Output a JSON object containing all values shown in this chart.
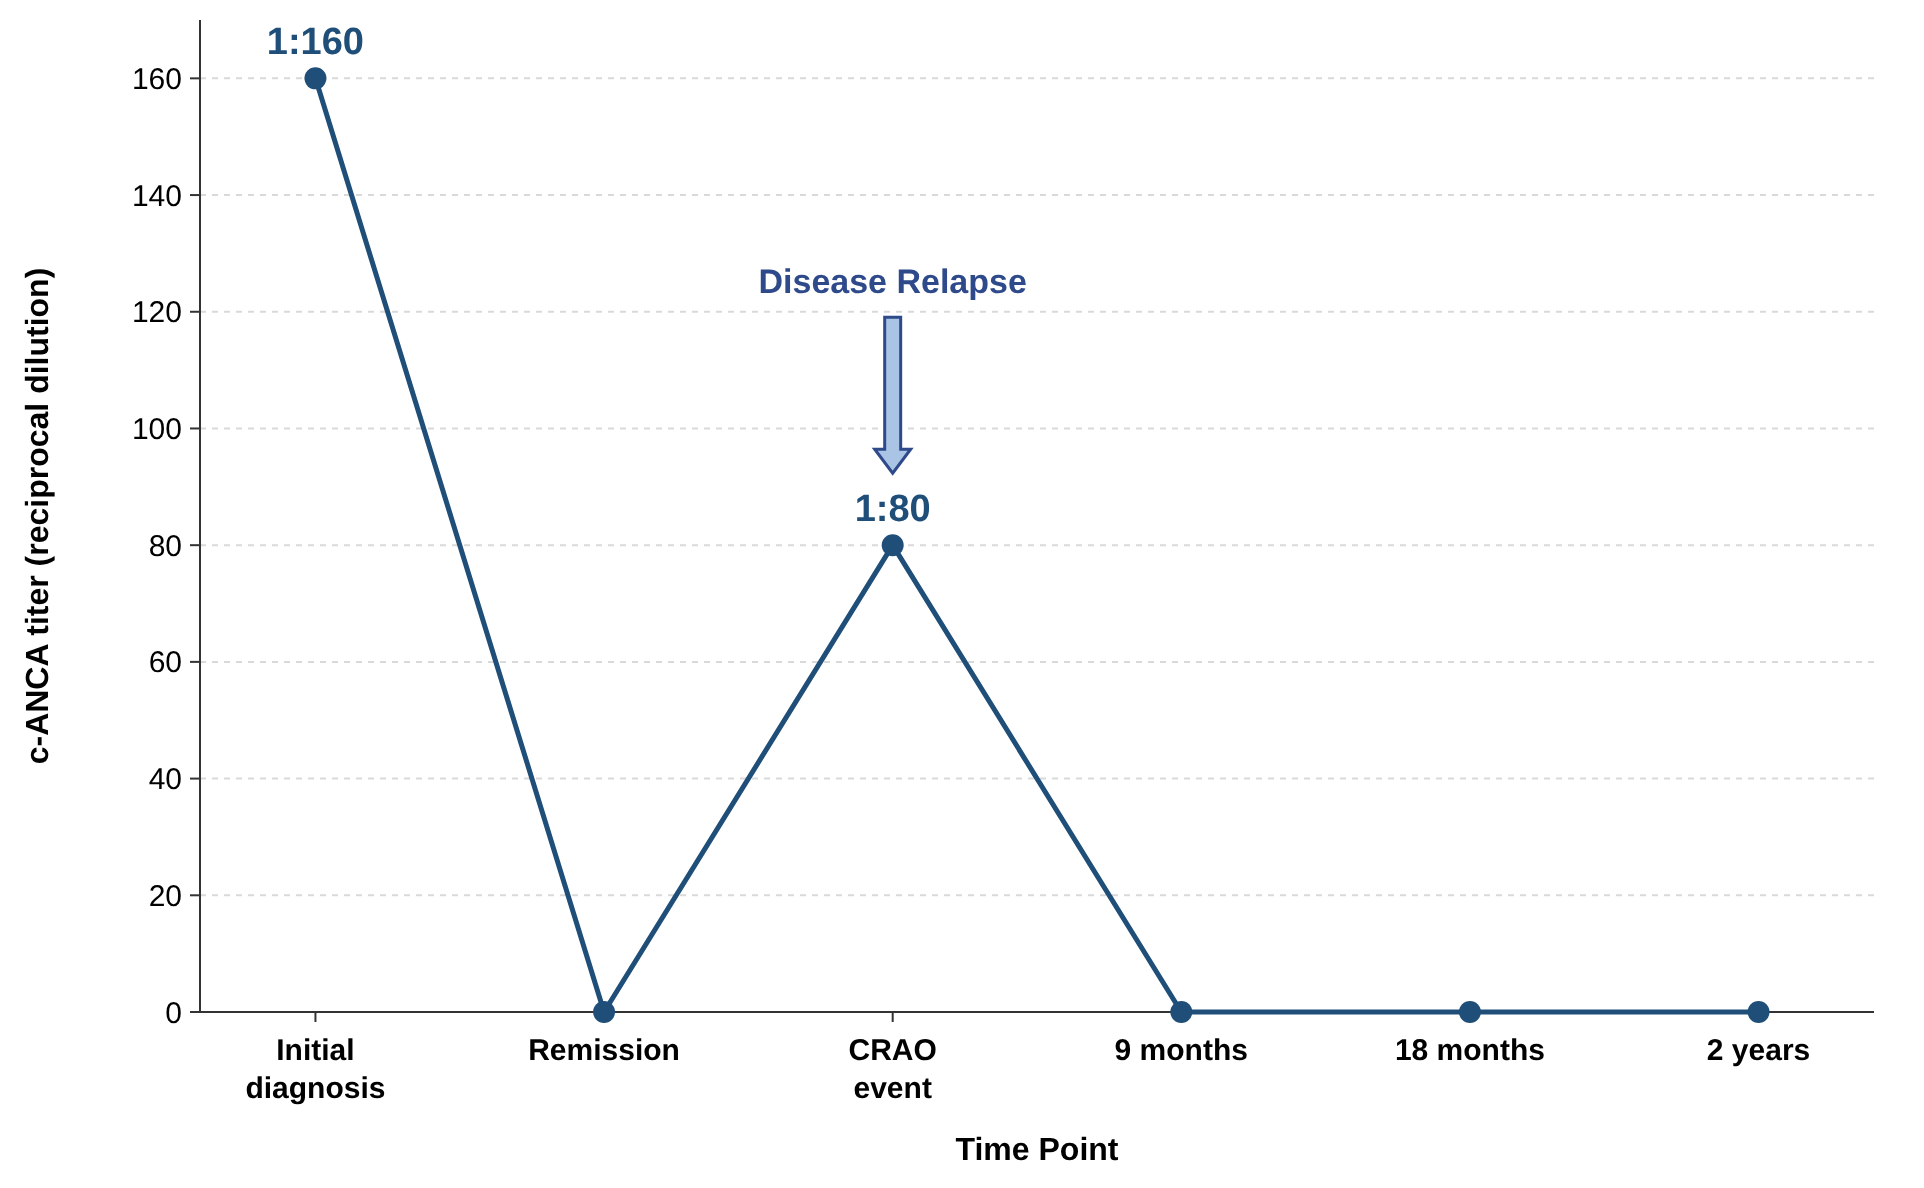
{
  "chart_data": {
    "type": "line",
    "xlabel": "Time Point",
    "ylabel": "c-ANCA titer (reciprocal dilution)",
    "categories": [
      "Initial diagnosis",
      "Remission",
      "CRAO event",
      "9 months",
      "18 months",
      "2 years"
    ],
    "series": [
      {
        "color": "#1f4e79",
        "values": [
          160,
          0,
          80,
          0,
          0,
          0
        ]
      }
    ],
    "ylim": [
      0,
      170
    ],
    "yticks": [
      0,
      20,
      40,
      60,
      80,
      100,
      120,
      140,
      160
    ],
    "grid": "y",
    "marker": "circle",
    "line_style": "solid",
    "annotations": [
      {
        "text": "1:160",
        "x": "Initial diagnosis",
        "y": 160
      },
      {
        "text": "1:80",
        "x": "CRAO event",
        "y": 80
      },
      "Disease Relapse"
    ]
  }
}
